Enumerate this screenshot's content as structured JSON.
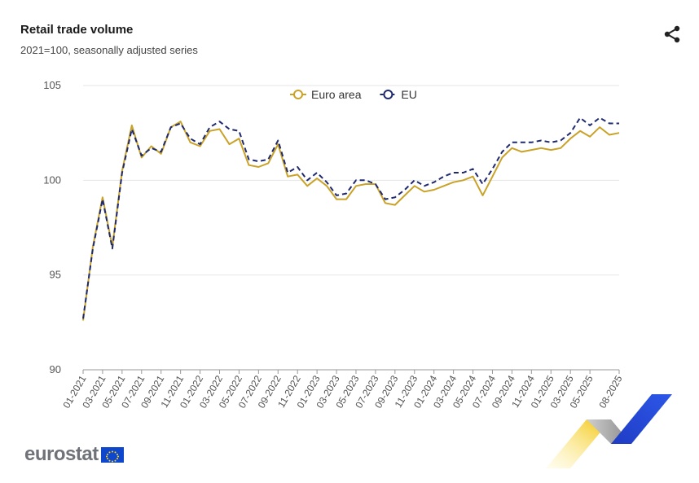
{
  "header": {
    "title": "Retail trade volume",
    "subtitle": "2021=100, seasonally adjusted series"
  },
  "logo": {
    "text": "eurostat"
  },
  "icons": {
    "share": "share-icon",
    "flag": "eu-flag-icon"
  },
  "colors": {
    "euro_area": "#c9a227",
    "eu": "#1f2a6e",
    "grid": "#e6e6e6",
    "axis": "#999999"
  },
  "chart_data": {
    "type": "line",
    "title": "Retail trade volume",
    "subtitle": "2021=100, seasonally adjusted series",
    "xlabel": "",
    "ylabel": "",
    "ylim": [
      90,
      105
    ],
    "yticks": [
      90,
      95,
      100,
      105
    ],
    "legend_position": "top-center",
    "x": [
      "01-2021",
      "02-2021",
      "03-2021",
      "04-2021",
      "05-2021",
      "06-2021",
      "07-2021",
      "08-2021",
      "09-2021",
      "10-2021",
      "11-2021",
      "12-2021",
      "01-2022",
      "02-2022",
      "03-2022",
      "04-2022",
      "05-2022",
      "06-2022",
      "07-2022",
      "08-2022",
      "09-2022",
      "10-2022",
      "11-2022",
      "12-2022",
      "01-2023",
      "02-2023",
      "03-2023",
      "04-2023",
      "05-2023",
      "06-2023",
      "07-2023",
      "08-2023",
      "09-2023",
      "10-2023",
      "11-2023",
      "12-2023",
      "01-2024",
      "02-2024",
      "03-2024",
      "04-2024",
      "05-2024",
      "06-2024",
      "07-2024",
      "08-2024",
      "09-2024",
      "10-2024",
      "11-2024",
      "12-2024",
      "01-2025",
      "02-2025",
      "03-2025",
      "04-2025",
      "05-2025",
      "06-2025",
      "07-2025",
      "08-2025"
    ],
    "xtick_labels": [
      "01-2021",
      "03-2021",
      "05-2021",
      "07-2021",
      "09-2021",
      "11-2021",
      "01-2022",
      "03-2022",
      "05-2022",
      "07-2022",
      "09-2022",
      "11-2022",
      "01-2023",
      "03-2023",
      "05-2023",
      "07-2023",
      "09-2023",
      "11-2023",
      "01-2024",
      "03-2024",
      "05-2024",
      "07-2024",
      "09-2024",
      "11-2024",
      "01-2025",
      "03-2025",
      "05-2025",
      "08-2025"
    ],
    "series": [
      {
        "name": "Euro area",
        "style": "solid",
        "values": [
          92.6,
          96.5,
          99.1,
          96.5,
          100.5,
          102.9,
          101.2,
          101.8,
          101.4,
          102.8,
          103.1,
          102.0,
          101.8,
          102.6,
          102.7,
          101.9,
          102.2,
          100.8,
          100.7,
          100.9,
          101.9,
          100.2,
          100.3,
          99.7,
          100.1,
          99.7,
          99.0,
          99.0,
          99.7,
          99.8,
          99.8,
          98.8,
          98.7,
          99.2,
          99.7,
          99.4,
          99.5,
          99.7,
          99.9,
          100.0,
          100.2,
          99.2,
          100.2,
          101.2,
          101.7,
          101.5,
          101.6,
          101.7,
          101.6,
          101.7,
          102.2,
          102.6,
          102.3,
          102.8,
          102.4,
          102.5
        ]
      },
      {
        "name": "EU",
        "style": "dashed",
        "values": [
          92.7,
          96.4,
          99.0,
          96.4,
          100.4,
          102.7,
          101.3,
          101.7,
          101.5,
          102.8,
          103.0,
          102.2,
          101.9,
          102.8,
          103.1,
          102.7,
          102.6,
          101.1,
          101.0,
          101.1,
          102.1,
          100.4,
          100.7,
          100.0,
          100.4,
          99.9,
          99.2,
          99.3,
          100.0,
          100.0,
          99.8,
          99.0,
          99.1,
          99.5,
          100.0,
          99.7,
          99.9,
          100.2,
          100.4,
          100.4,
          100.6,
          99.8,
          100.6,
          101.5,
          102.0,
          102.0,
          102.0,
          102.1,
          102.0,
          102.1,
          102.5,
          103.3,
          102.9,
          103.3,
          103.0,
          103.0
        ]
      }
    ]
  }
}
